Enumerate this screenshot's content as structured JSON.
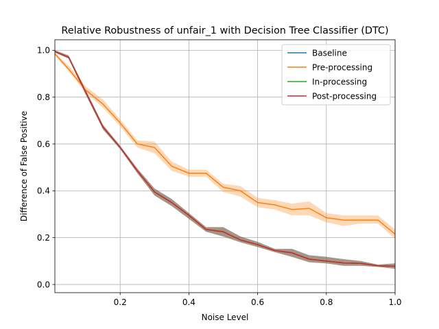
{
  "chart_data": {
    "type": "line",
    "title": "Relative Robustness of unfair_1 with Decision Tree Classifier (DTC)",
    "xlabel": "Noise Level",
    "ylabel": "Difference of False Positive",
    "xlim": [
      0.01,
      1.0
    ],
    "ylim": [
      -0.035,
      1.045
    ],
    "xticks": [
      0.2,
      0.4,
      0.6,
      0.8,
      1.0
    ],
    "xtick_labels": [
      "0.2",
      "0.4",
      "0.6",
      "0.8",
      "1.0"
    ],
    "yticks": [
      0.0,
      0.2,
      0.4,
      0.6,
      0.8,
      1.0
    ],
    "ytick_labels": [
      "0.0",
      "0.2",
      "0.4",
      "0.6",
      "0.8",
      "1.0"
    ],
    "grid": true,
    "legend_position": "top-right",
    "x": [
      0.01,
      0.05,
      0.1,
      0.15,
      0.2,
      0.25,
      0.3,
      0.35,
      0.4,
      0.45,
      0.5,
      0.55,
      0.6,
      0.65,
      0.7,
      0.75,
      0.8,
      0.85,
      0.9,
      0.95,
      1.0
    ],
    "series": [
      {
        "name": "Baseline",
        "color": "#1f77b4",
        "values": [
          0.995,
          0.97,
          0.82,
          0.672,
          0.585,
          0.485,
          0.395,
          0.35,
          0.295,
          0.235,
          0.225,
          0.19,
          0.17,
          0.145,
          0.135,
          0.108,
          0.1,
          0.092,
          0.09,
          0.08,
          0.078
        ],
        "band_low": [
          0.99,
          0.965,
          0.81,
          0.662,
          0.578,
          0.475,
          0.38,
          0.335,
          0.28,
          0.225,
          0.205,
          0.18,
          0.16,
          0.138,
          0.118,
          0.095,
          0.09,
          0.08,
          0.08,
          0.075,
          0.067
        ],
        "band_high": [
          1.0,
          0.978,
          0.83,
          0.682,
          0.592,
          0.495,
          0.41,
          0.365,
          0.305,
          0.245,
          0.245,
          0.205,
          0.182,
          0.152,
          0.152,
          0.125,
          0.118,
          0.108,
          0.1,
          0.085,
          0.09
        ]
      },
      {
        "name": "Pre-processing",
        "color": "#ff7f0e",
        "values": [
          0.985,
          0.92,
          0.83,
          0.77,
          0.69,
          0.6,
          0.585,
          0.505,
          0.475,
          0.475,
          0.415,
          0.4,
          0.35,
          0.34,
          0.32,
          0.325,
          0.285,
          0.275,
          0.275,
          0.275,
          0.215
        ],
        "band_low": [
          0.98,
          0.91,
          0.82,
          0.755,
          0.675,
          0.585,
          0.56,
          0.485,
          0.46,
          0.46,
          0.395,
          0.375,
          0.33,
          0.32,
          0.295,
          0.295,
          0.265,
          0.25,
          0.26,
          0.26,
          0.195
        ],
        "band_high": [
          0.99,
          0.935,
          0.845,
          0.79,
          0.705,
          0.615,
          0.61,
          0.525,
          0.49,
          0.49,
          0.43,
          0.42,
          0.37,
          0.36,
          0.345,
          0.355,
          0.305,
          0.295,
          0.295,
          0.295,
          0.235
        ]
      },
      {
        "name": "In-processing",
        "color": "#2ca02c",
        "values": [
          0.995,
          0.97,
          0.82,
          0.672,
          0.585,
          0.485,
          0.395,
          0.35,
          0.295,
          0.235,
          0.225,
          0.19,
          0.17,
          0.145,
          0.135,
          0.108,
          0.1,
          0.092,
          0.09,
          0.08,
          0.078
        ],
        "band_low": [
          0.99,
          0.965,
          0.81,
          0.662,
          0.578,
          0.475,
          0.38,
          0.335,
          0.28,
          0.225,
          0.205,
          0.18,
          0.16,
          0.138,
          0.118,
          0.095,
          0.09,
          0.08,
          0.08,
          0.075,
          0.067
        ],
        "band_high": [
          1.0,
          0.978,
          0.83,
          0.682,
          0.592,
          0.495,
          0.41,
          0.365,
          0.305,
          0.245,
          0.245,
          0.205,
          0.182,
          0.152,
          0.152,
          0.125,
          0.118,
          0.108,
          0.1,
          0.085,
          0.09
        ]
      },
      {
        "name": "Post-processing",
        "color": "#d62728",
        "values": [
          0.995,
          0.97,
          0.82,
          0.672,
          0.585,
          0.485,
          0.395,
          0.35,
          0.295,
          0.235,
          0.225,
          0.19,
          0.17,
          0.145,
          0.135,
          0.108,
          0.1,
          0.092,
          0.09,
          0.08,
          0.078
        ],
        "band_low": [
          0.99,
          0.965,
          0.81,
          0.662,
          0.578,
          0.475,
          0.38,
          0.335,
          0.28,
          0.225,
          0.205,
          0.18,
          0.16,
          0.138,
          0.118,
          0.095,
          0.09,
          0.08,
          0.08,
          0.075,
          0.067
        ],
        "band_high": [
          1.0,
          0.978,
          0.83,
          0.682,
          0.592,
          0.495,
          0.41,
          0.365,
          0.305,
          0.245,
          0.245,
          0.205,
          0.182,
          0.152,
          0.152,
          0.125,
          0.118,
          0.108,
          0.1,
          0.085,
          0.09
        ]
      }
    ]
  }
}
